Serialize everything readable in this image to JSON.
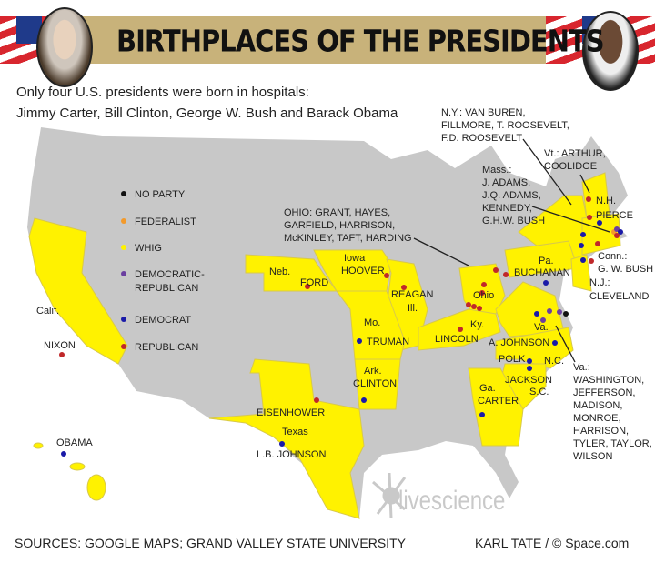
{
  "title": "BIRTHPLACES OF THE PRESIDENTS",
  "subtitle_line1": "Only four U.S. presidents were born in hospitals:",
  "subtitle_line2": "Jimmy Carter, Bill Clinton, George W. Bush and Barack Obama",
  "legend": [
    {
      "label": "NO PARTY",
      "color": "#111111"
    },
    {
      "label": "FEDERALIST",
      "color": "#f39a2b"
    },
    {
      "label": "WHIG",
      "color": "#fff200"
    },
    {
      "label": "DEMOCRATIC-",
      "label2": "REPUBLICAN",
      "color": "#6b3fa0"
    },
    {
      "label": "DEMOCRAT",
      "color": "#1a1aa8"
    },
    {
      "label": "REPUBLICAN",
      "color": "#c0282a"
    }
  ],
  "map_colors": {
    "highlighted_state": "#fff200",
    "other_state": "#c8c8c8"
  },
  "labels": {
    "calif": "Calif.",
    "nixon": "NIXON",
    "neb": "Neb.",
    "ford": "FORD",
    "iowa": "Iowa",
    "hoover": "HOOVER",
    "reagan": "REAGAN",
    "ill": "Ill.",
    "mo": "Mo.",
    "truman": "TRUMAN",
    "ark": "Ark.",
    "clinton": "CLINTON",
    "eisenhower": "EISENHOWER",
    "texas": "Texas",
    "lbj": "L.B. JOHNSON",
    "obama": "OBAMA",
    "ohio_note": [
      "OHIO: GRANT, HAYES,",
      "GARFIELD, HARRISON,",
      "McKINLEY, TAFT, HARDING"
    ],
    "ohio": "Ohio",
    "ky": "Ky.",
    "lincoln": "LINCOLN",
    "pa": "Pa.",
    "buchanan": "BUCHANAN",
    "ny_note": [
      "N.Y.: VAN BUREN,",
      "FILLMORE, T. ROOSEVELT,",
      "F.D. ROOSEVELT"
    ],
    "vt_note": [
      "Vt.: ARTHUR,",
      "COOLIDGE"
    ],
    "mass_note": [
      "Mass.:",
      "J. ADAMS,",
      "J.Q. ADAMS,",
      "KENNEDY,",
      "G.H.W. BUSH"
    ],
    "nh": "N.H.",
    "pierce": "PIERCE",
    "conn": "Conn.:",
    "gwbush": "G. W. BUSH",
    "nj": "N.J.:",
    "cleveland": "CLEVELAND",
    "va": "Va.",
    "ajohnson": "A. JOHNSON",
    "polk": "POLK",
    "nc": "N.C.",
    "jackson": "JACKSON",
    "sc": "S.C.",
    "ga": "Ga.",
    "carter": "CARTER",
    "va_note": [
      "Va.:",
      "WASHINGTON,",
      "JEFFERSON,",
      "MADISON,",
      "MONROE,",
      "HARRISON,",
      "TYLER, TAYLOR,",
      "WILSON"
    ]
  },
  "watermark": "livescience",
  "sources": "SOURCES: GOOGLE MAPS; GRAND VALLEY STATE UNIVERSITY",
  "credit": "KARL TATE / © Space.com"
}
